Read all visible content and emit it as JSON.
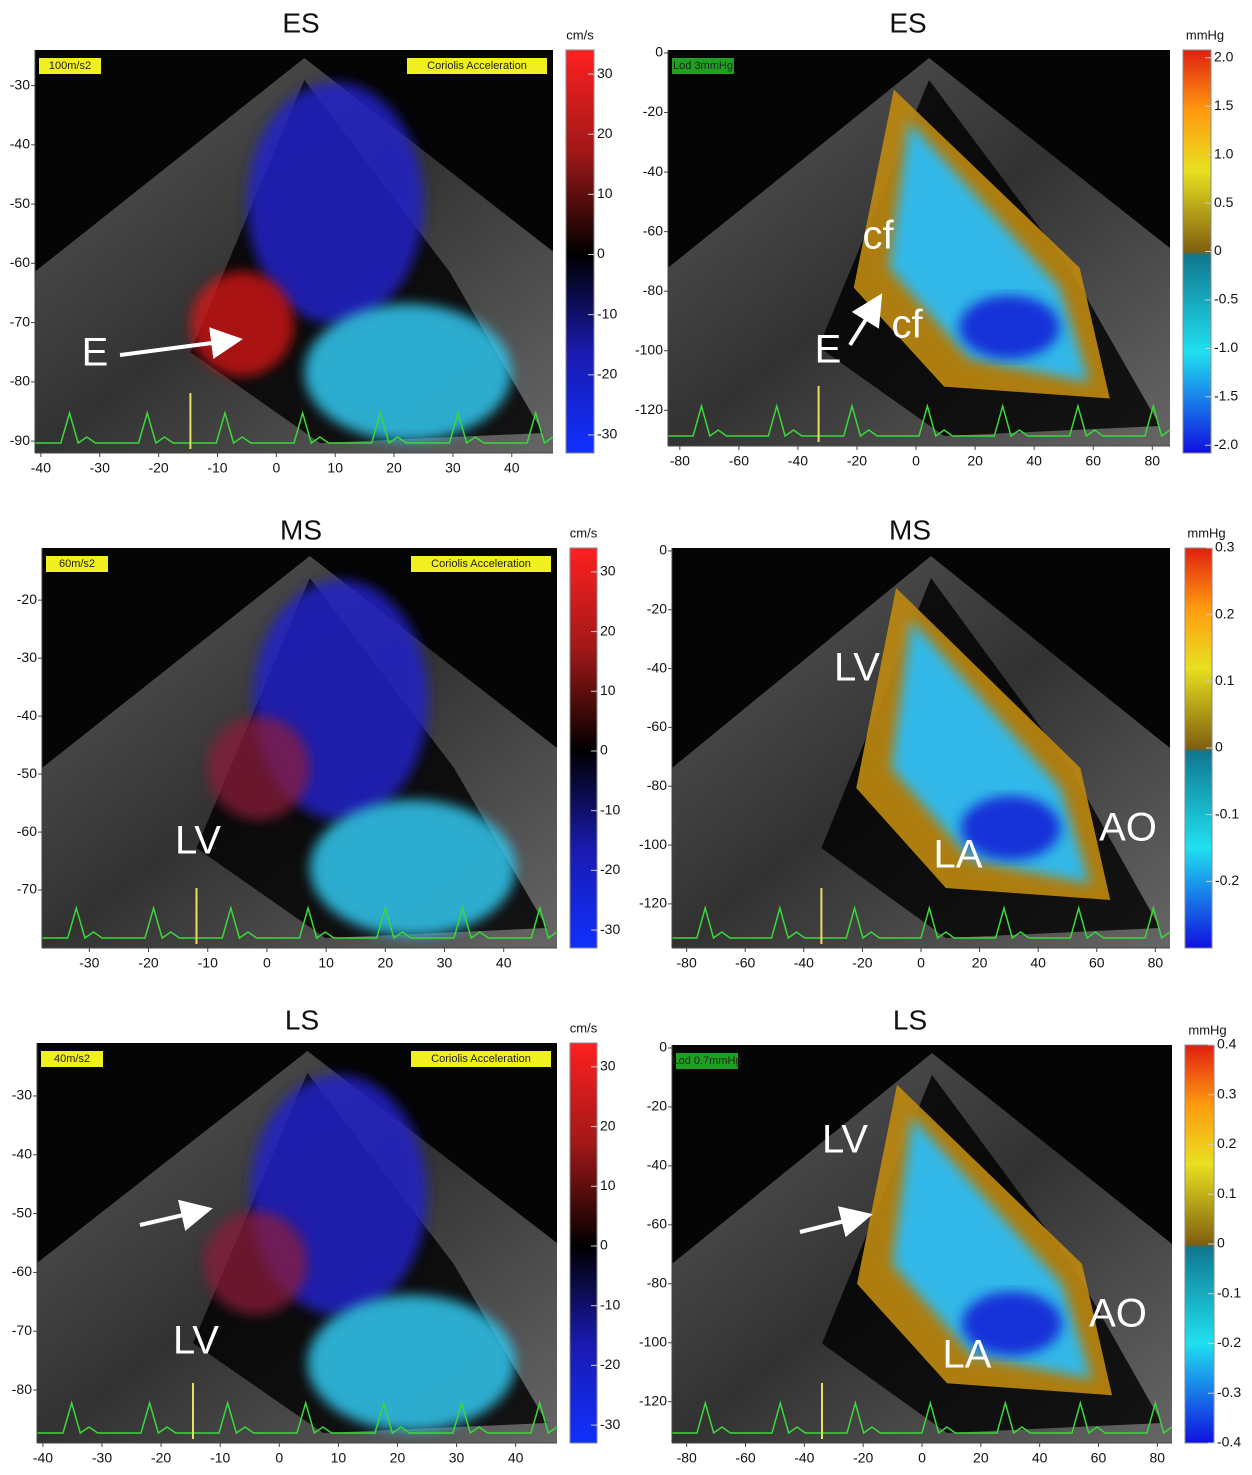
{
  "panels": [
    {
      "title": "ES",
      "xlim": [
        -41,
        47
      ],
      "xticks": [
        -40,
        -30,
        -20,
        -10,
        0,
        10,
        20,
        30,
        40
      ],
      "ylim": [
        -92,
        -24
      ],
      "yticks": [
        -30,
        -40,
        -50,
        -60,
        -70,
        -80,
        -90
      ],
      "colorbar": {
        "unit": "cm/s",
        "lim": [
          -33,
          34
        ],
        "ticks": [
          30,
          20,
          10,
          0,
          -10,
          -20,
          -30
        ]
      },
      "badges": [
        "100m/s2",
        "Coriolis Acceleration"
      ],
      "annotations": [
        "E"
      ]
    },
    {
      "title": "ES",
      "xlim": [
        -84,
        86
      ],
      "xticks": [
        -80,
        -60,
        -40,
        -20,
        0,
        20,
        40,
        60,
        80
      ],
      "ylim": [
        -132,
        1
      ],
      "yticks": [
        0,
        -20,
        -40,
        -60,
        -80,
        -100,
        -120
      ],
      "colorbar": {
        "unit": "mmHg",
        "lim": [
          -2.08,
          2.08
        ],
        "ticks": [
          {
            "value": 2,
            "label": "2.0"
          },
          1.5,
          {
            "value": 1,
            "label": "1.0"
          },
          0.5,
          0,
          -0.5,
          {
            "value": -1,
            "label": "-1.0"
          },
          -1.5,
          {
            "value": -2,
            "label": "-2.0"
          }
        ]
      },
      "badges": [
        "Lod 3mmHg"
      ],
      "annotations": [
        "cf",
        "cf",
        "E"
      ]
    },
    {
      "title": "MS",
      "xlim": [
        -38,
        49
      ],
      "xticks": [
        -30,
        -20,
        -10,
        0,
        10,
        20,
        30,
        40
      ],
      "ylim": [
        -80,
        -11
      ],
      "yticks": [
        -20,
        -30,
        -40,
        -50,
        -60,
        -70
      ],
      "colorbar": {
        "unit": "cm/s",
        "lim": [
          -33,
          34
        ],
        "ticks": [
          30,
          20,
          10,
          0,
          -10,
          -20,
          -30
        ]
      },
      "badges": [
        "60m/s2",
        "Coriolis Acceleration"
      ],
      "annotations": [
        "LV"
      ]
    },
    {
      "title": "MS",
      "xlim": [
        -85,
        85
      ],
      "xticks": [
        -80,
        -60,
        -40,
        -20,
        0,
        20,
        40,
        60,
        80
      ],
      "ylim": [
        -135,
        1
      ],
      "yticks": [
        0,
        -20,
        -40,
        -60,
        -80,
        -100,
        -120
      ],
      "colorbar": {
        "unit": "mmHg",
        "lim": [
          -0.3,
          0.3
        ],
        "ticks": [
          0.3,
          0.2,
          0.1,
          0,
          -0.1,
          -0.2
        ]
      },
      "badges": [],
      "annotations": [
        "LV",
        "LA",
        "AO"
      ]
    },
    {
      "title": "LS",
      "xlim": [
        -41,
        47
      ],
      "xticks": [
        -40,
        -30,
        -20,
        -10,
        0,
        10,
        20,
        30,
        40
      ],
      "ylim": [
        -89,
        -21
      ],
      "yticks": [
        -30,
        -40,
        -50,
        -60,
        -70,
        -80
      ],
      "colorbar": {
        "unit": "cm/s",
        "lim": [
          -33,
          34
        ],
        "ticks": [
          30,
          20,
          10,
          0,
          -10,
          -20,
          -30
        ]
      },
      "badges": [
        "40m/s2",
        "Coriolis Acceleration"
      ],
      "annotations": [
        "LV"
      ]
    },
    {
      "title": "LS",
      "xlim": [
        -85,
        85
      ],
      "xticks": [
        -80,
        -60,
        -40,
        -20,
        0,
        20,
        40,
        60,
        80
      ],
      "ylim": [
        -134,
        1
      ],
      "yticks": [
        0,
        -20,
        -40,
        -60,
        -80,
        -100,
        -120
      ],
      "colorbar": {
        "unit": "mmHg",
        "lim": [
          -0.4,
          0.4
        ],
        "ticks": [
          0.4,
          0.3,
          0.2,
          0.1,
          0,
          -0.1,
          -0.2,
          -0.3,
          -0.4
        ]
      },
      "badges": [
        "Lod 0.7mmHg"
      ],
      "annotations": [
        "LV",
        "LA",
        "AO"
      ]
    }
  ]
}
